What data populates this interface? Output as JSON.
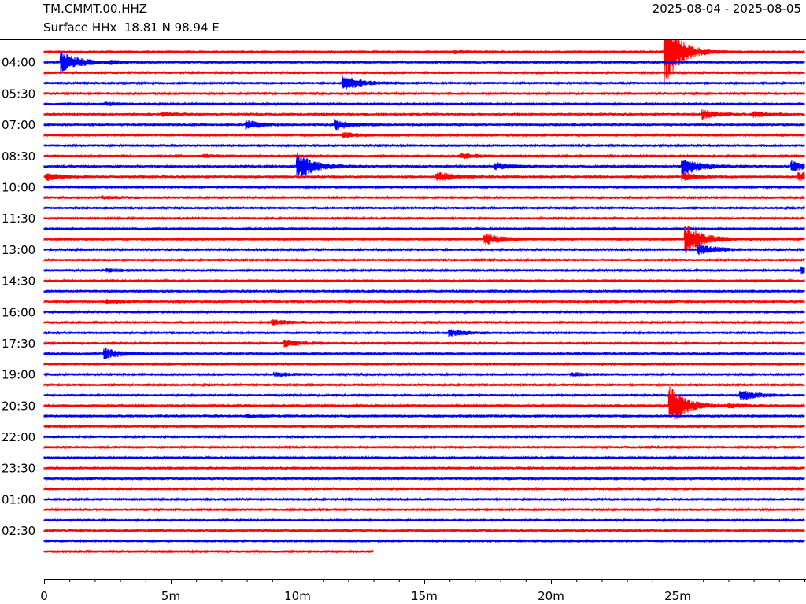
{
  "header": {
    "station": "TM.CMMT.00.HHZ",
    "channel_info": "Surface HHx  18.81 N 98.94 E",
    "date_range": "2025-08-04 - 2025-08-05"
  },
  "chart_data": {
    "type": "line",
    "title": "TM.CMMT.00.HHZ",
    "subtitle": "Surface HHx  18.81 N 98.94 E",
    "date_range": "2025-08-04 - 2025-08-05",
    "xlabel": "",
    "ylabel": "",
    "x_unit": "minutes",
    "xlim": [
      0,
      30
    ],
    "x_ticks": [
      0,
      5,
      10,
      15,
      20,
      25
    ],
    "x_tick_labels": [
      "0",
      "5m",
      "10m",
      "15m",
      "20m",
      "25m"
    ],
    "row_minutes": 30,
    "row_count": 49,
    "row_time_labels": [
      "04:00",
      "05:30",
      "07:00",
      "08:30",
      "10:00",
      "11:30",
      "13:00",
      "14:30",
      "16:00",
      "17:30",
      "19:00",
      "20:30",
      "22:00",
      "23:30",
      "01:00",
      "02:30"
    ],
    "row_label_every": 3,
    "first_label_row": 1,
    "last_row_end_minute": 13,
    "trace_colors": [
      "#ff0000",
      "#0000ff"
    ],
    "events": [
      {
        "row": 1,
        "minute": 0.7,
        "amplitude": 14
      },
      {
        "row": 1,
        "minute": 2.6,
        "amplitude": 1.5
      },
      {
        "row": 0,
        "minute": 16.2,
        "amplitude": 1.5
      },
      {
        "row": 0,
        "minute": 24.5,
        "amplitude": 40
      },
      {
        "row": 3,
        "minute": 11.8,
        "amplitude": 10
      },
      {
        "row": 7,
        "minute": 11.5,
        "amplitude": 6
      },
      {
        "row": 8,
        "minute": 11.8,
        "amplitude": 3
      },
      {
        "row": 5,
        "minute": 2.5,
        "amplitude": 1.5
      },
      {
        "row": 6,
        "minute": 4.7,
        "amplitude": 2
      },
      {
        "row": 7,
        "minute": 8.0,
        "amplitude": 5
      },
      {
        "row": 6,
        "minute": 26.0,
        "amplitude": 5
      },
      {
        "row": 6,
        "minute": 28.0,
        "amplitude": 3
      },
      {
        "row": 11,
        "minute": 10.0,
        "amplitude": 18
      },
      {
        "row": 11,
        "minute": 25.2,
        "amplitude": 12
      },
      {
        "row": 12,
        "minute": 25.2,
        "amplitude": 4
      },
      {
        "row": 10,
        "minute": 6.3,
        "amplitude": 1.5
      },
      {
        "row": 10,
        "minute": 16.5,
        "amplitude": 3
      },
      {
        "row": 11,
        "minute": 17.8,
        "amplitude": 4
      },
      {
        "row": 11,
        "minute": 29.5,
        "amplitude": 6
      },
      {
        "row": 12,
        "minute": 0.1,
        "amplitude": 4
      },
      {
        "row": 12,
        "minute": 15.5,
        "amplitude": 6
      },
      {
        "row": 12,
        "minute": 29.8,
        "amplitude": 6
      },
      {
        "row": 14,
        "minute": 2.3,
        "amplitude": 1.5
      },
      {
        "row": 18,
        "minute": 17.4,
        "amplitude": 7
      },
      {
        "row": 18,
        "minute": 25.3,
        "amplitude": 20
      },
      {
        "row": 19,
        "minute": 25.8,
        "amplitude": 7
      },
      {
        "row": 21,
        "minute": 29.9,
        "amplitude": 4
      },
      {
        "row": 21,
        "minute": 2.5,
        "amplitude": 1.5
      },
      {
        "row": 24,
        "minute": 2.5,
        "amplitude": 2
      },
      {
        "row": 26,
        "minute": 9.0,
        "amplitude": 3
      },
      {
        "row": 27,
        "minute": 16.0,
        "amplitude": 4
      },
      {
        "row": 28,
        "minute": 9.5,
        "amplitude": 4
      },
      {
        "row": 29,
        "minute": 2.4,
        "amplitude": 6
      },
      {
        "row": 31,
        "minute": 9.1,
        "amplitude": 2
      },
      {
        "row": 31,
        "minute": 20.8,
        "amplitude": 2
      },
      {
        "row": 33,
        "minute": 27.5,
        "amplitude": 6
      },
      {
        "row": 34,
        "minute": 27.0,
        "amplitude": 2
      },
      {
        "row": 35,
        "minute": 8.0,
        "amplitude": 1.5
      },
      {
        "row": 34,
        "minute": 24.7,
        "amplitude": 25
      }
    ],
    "grid": false,
    "legend": "none"
  }
}
